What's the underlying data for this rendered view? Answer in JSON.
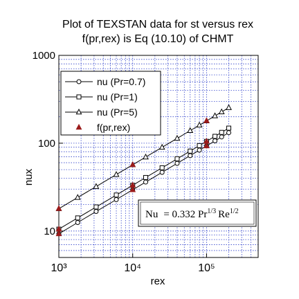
{
  "chart_data": {
    "type": "line",
    "title": "Plot of TEXSTAN data for st versus rex",
    "subtitle": "f(pr,rex) is Eq (10.10) of CHMT",
    "x_label": "rex",
    "y_label": "nux",
    "log_x": true,
    "log_y": true,
    "grid": true,
    "xlim": [
      1000,
      500000
    ],
    "ylim": [
      5,
      1000
    ],
    "xticks": [
      {
        "value": 1000,
        "label": "10³"
      },
      {
        "value": 10000,
        "label": "10⁴"
      },
      {
        "value": 100000,
        "label": "10⁵"
      }
    ],
    "yticks": [
      10,
      100,
      1000
    ],
    "xminorticks": [
      2000,
      3000,
      4000,
      5000,
      6000,
      7000,
      8000,
      9000,
      20000,
      30000,
      40000,
      50000,
      60000,
      70000,
      80000,
      90000,
      200000,
      300000,
      400000
    ],
    "yminorticks": [
      6,
      7,
      8,
      9,
      20,
      30,
      40,
      50,
      60,
      70,
      80,
      90,
      200,
      300,
      400,
      500,
      600,
      700,
      800,
      900
    ],
    "legend": "upper left",
    "series": [
      {
        "name": "nu (Pr=0.7)",
        "color": "#000000",
        "marker": "circle",
        "line": true,
        "x": [
          1000,
          1800,
          3200,
          6000,
          10000,
          15000,
          25000,
          40000,
          60000,
          80000,
          100000,
          130000,
          160000,
          200000
        ],
        "values": [
          9.3,
          12.5,
          16.7,
          22.8,
          29.5,
          36.1,
          46.6,
          59.0,
          72.2,
          83.4,
          93.2,
          106.3,
          117.9,
          131.8
        ]
      },
      {
        "name": "nu (Pr=1)",
        "color": "#000000",
        "marker": "square",
        "line": true,
        "x": [
          1000,
          1800,
          3200,
          6000,
          10000,
          15000,
          25000,
          40000,
          60000,
          80000,
          100000,
          130000,
          160000,
          200000
        ],
        "values": [
          10.5,
          14.1,
          18.8,
          25.7,
          33.2,
          40.7,
          52.5,
          66.4,
          81.3,
          93.9,
          105.0,
          119.7,
          132.8,
          148.5
        ]
      },
      {
        "name": "nu (Pr=5)",
        "color": "#000000",
        "marker": "triangle",
        "line": true,
        "x": [
          1000,
          1800,
          3200,
          6000,
          10000,
          15000,
          25000,
          40000,
          60000,
          80000,
          100000,
          130000,
          160000,
          200000
        ],
        "values": [
          17.95,
          24.1,
          32.1,
          44.0,
          56.8,
          69.5,
          89.8,
          113.5,
          139.0,
          160.5,
          179.5,
          204.7,
          227.1,
          253.9
        ]
      },
      {
        "name": "f(pr,rex)",
        "color": "#9b1b1b",
        "marker": "filled-triangle",
        "line": false,
        "x": [
          1000,
          1000,
          1000,
          10000,
          10000,
          10000,
          100000,
          100000,
          100000
        ],
        "values": [
          9.3,
          10.5,
          18.0,
          29.5,
          33.2,
          56.8,
          93.2,
          105.0,
          180.0
        ]
      }
    ],
    "annotation": [
      "Nu",
      "= 0.332 Pr",
      "1/3",
      "Re",
      "1/2"
    ]
  }
}
